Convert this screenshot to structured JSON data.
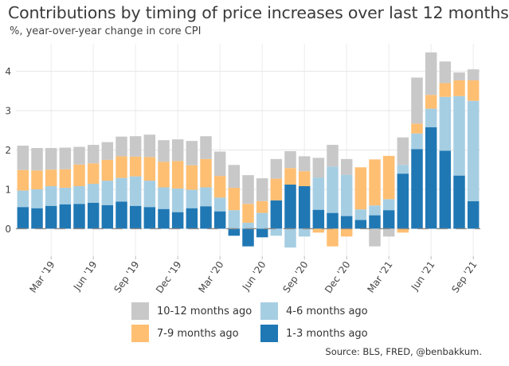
{
  "title": "Contributions by timing of price increases over last 12 months",
  "subtitle": "%, year-over-year change in core CPI",
  "source": "Source: BLS, FRED, @benbakkum.",
  "colors": {
    "10-12 months ago": "#c8c8c8",
    "7-9 months ago": "#ffbf72",
    "4-6 months ago": "#a6cee3",
    "1-3 months ago": "#1f78b4",
    "total_line": "#777777"
  },
  "legend": [
    {
      "label": "10-12 months ago",
      "color": "#c8c8c8"
    },
    {
      "label": "4-6 months ago",
      "color": "#a6cee3"
    },
    {
      "label": "7-9 months ago",
      "color": "#ffbf72"
    },
    {
      "label": "1-3 months ago",
      "color": "#1f78b4"
    }
  ],
  "chart_data": {
    "type": "bar",
    "stacked": true,
    "title": "Contributions by timing of price increases over last 12 months",
    "subtitle": "%, year-over-year change in core CPI",
    "ylim": [
      -0.7,
      4.7
    ],
    "yticks": [
      0,
      1,
      2,
      3,
      4
    ],
    "grid": true,
    "legend_position": "bottom",
    "x_tick_labels": [
      {
        "index": 2,
        "label": "Mar '19"
      },
      {
        "index": 5,
        "label": "Jun '19"
      },
      {
        "index": 8,
        "label": "Sep '19"
      },
      {
        "index": 11,
        "label": "Dec '19"
      },
      {
        "index": 14,
        "label": "Mar '20"
      },
      {
        "index": 17,
        "label": "Jun '20"
      },
      {
        "index": 20,
        "label": "Sep '20"
      },
      {
        "index": 23,
        "label": "Dec '20"
      },
      {
        "index": 26,
        "label": "Mar '21"
      },
      {
        "index": 29,
        "label": "Jun '21"
      },
      {
        "index": 32,
        "label": "Sep '21"
      }
    ],
    "series": [
      {
        "name": "1-3 months ago",
        "values": [
          0.55,
          0.52,
          0.58,
          0.62,
          0.63,
          0.66,
          0.6,
          0.69,
          0.58,
          0.55,
          0.5,
          0.42,
          0.52,
          0.57,
          0.44,
          -0.18,
          -0.45,
          -0.22,
          0.72,
          1.12,
          1.08,
          0.48,
          0.4,
          0.32,
          0.22,
          0.34,
          0.47,
          1.4,
          2.02,
          2.58,
          1.98,
          1.35,
          0.7
        ]
      },
      {
        "name": "4-6 months ago",
        "values": [
          0.42,
          0.48,
          0.5,
          0.42,
          0.45,
          0.48,
          0.62,
          0.6,
          0.75,
          0.67,
          0.55,
          0.6,
          0.47,
          0.48,
          0.35,
          0.47,
          0.15,
          0.4,
          -0.18,
          -0.48,
          -0.2,
          0.82,
          1.18,
          1.05,
          0.27,
          0.25,
          0.28,
          0.22,
          0.4,
          0.47,
          1.37,
          2.02,
          2.55
        ]
      },
      {
        "name": "7-9 months ago",
        "values": [
          0.52,
          0.48,
          0.42,
          0.47,
          0.55,
          0.52,
          0.53,
          0.55,
          0.5,
          0.6,
          0.65,
          0.7,
          0.62,
          0.72,
          0.55,
          0.57,
          0.48,
          0.3,
          0.55,
          0.42,
          0.38,
          -0.1,
          -0.45,
          -0.2,
          1.07,
          1.17,
          1.1,
          -0.1,
          0.25,
          0.35,
          0.35,
          0.4,
          0.52
        ]
      },
      {
        "name": "10-12 months ago",
        "values": [
          0.62,
          0.57,
          0.55,
          0.55,
          0.45,
          0.47,
          0.45,
          0.5,
          0.52,
          0.57,
          0.55,
          0.55,
          0.62,
          0.58,
          0.62,
          0.58,
          0.73,
          0.58,
          0.5,
          0.43,
          0.38,
          0.5,
          0.55,
          0.4,
          0.0,
          -0.45,
          -0.2,
          0.7,
          1.17,
          1.08,
          0.55,
          0.2,
          0.28
        ]
      }
    ]
  }
}
